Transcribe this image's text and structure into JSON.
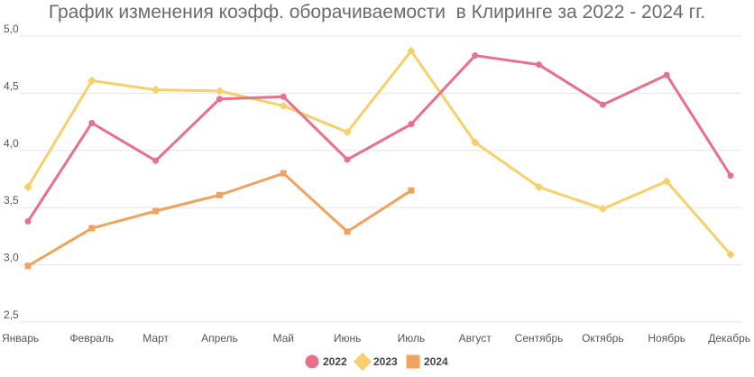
{
  "chart_data": {
    "type": "line",
    "title": "График изменения коэфф. оборачиваемости  в Клиринге за 2022 - 2024 гг.",
    "xlabel": "",
    "ylabel": "",
    "categories": [
      "Январь",
      "Февраль",
      "Март",
      "Апрель",
      "Май",
      "Июнь",
      "Июль",
      "Август",
      "Сентябрь",
      "Октябрь",
      "Ноябрь",
      "Декабрь"
    ],
    "ylim": [
      2.5,
      5.0
    ],
    "yticks": [
      2.5,
      3.0,
      3.5,
      4.0,
      4.5,
      5.0
    ],
    "ytick_labels": [
      "2,5",
      "3,0",
      "3,5",
      "4,0",
      "4,5",
      "5,0"
    ],
    "grid": true,
    "legend_position": "bottom",
    "series": [
      {
        "name": "2022",
        "color": "#e8708a",
        "marker": "circle",
        "values": [
          3.38,
          4.24,
          3.91,
          4.45,
          4.47,
          3.92,
          4.23,
          4.83,
          4.75,
          4.4,
          4.66,
          3.78
        ]
      },
      {
        "name": "2023",
        "color": "#f5d06b",
        "marker": "diamond",
        "values": [
          3.68,
          4.61,
          4.53,
          4.52,
          4.39,
          4.16,
          4.87,
          4.07,
          3.68,
          3.49,
          3.73,
          3.09
        ]
      },
      {
        "name": "2024",
        "color": "#f0a35c",
        "marker": "square",
        "values": [
          2.99,
          3.32,
          3.47,
          3.61,
          3.8,
          3.29,
          3.65,
          null,
          null,
          null,
          null,
          null
        ]
      }
    ]
  }
}
